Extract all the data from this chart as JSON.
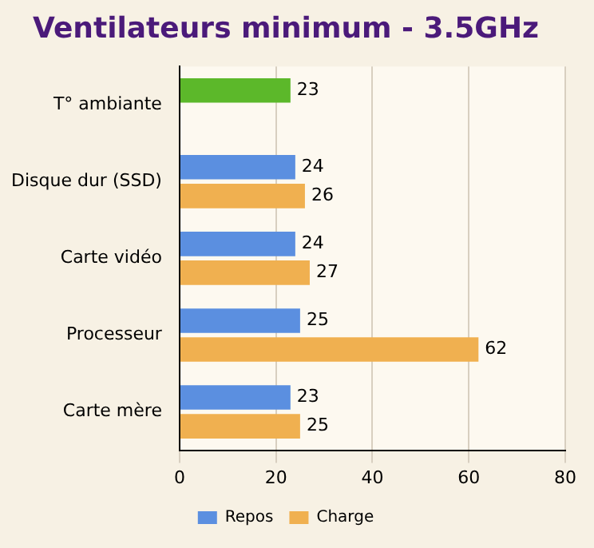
{
  "chart_data": {
    "type": "bar",
    "orientation": "horizontal",
    "title": "Ventilateurs minimum - 3.5GHz",
    "categories": [
      "T° ambiante",
      "Disque dur (SSD)",
      "Carte vidéo",
      "Processeur",
      "Carte mère"
    ],
    "series": [
      {
        "name": "Repos",
        "color": "#5b8fe0",
        "colors": [
          "#5cb82a",
          "#5b8fe0",
          "#5b8fe0",
          "#5b8fe0",
          "#5b8fe0"
        ],
        "values": [
          23,
          24,
          24,
          25,
          23
        ]
      },
      {
        "name": "Charge",
        "color": "#f0b050",
        "values": [
          null,
          26,
          27,
          62,
          25
        ]
      }
    ],
    "xlim": [
      0,
      80
    ],
    "xticks": [
      0,
      20,
      40,
      60,
      80
    ],
    "grid": "x",
    "legend": "bottom",
    "data_labels": true
  }
}
